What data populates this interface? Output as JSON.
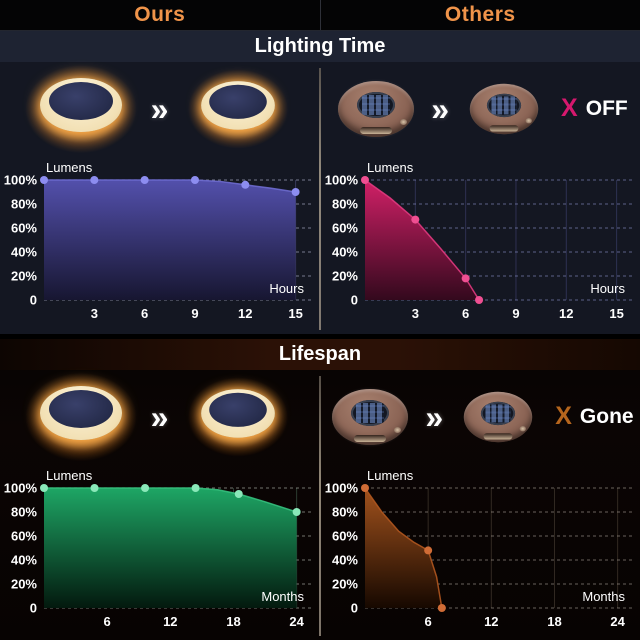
{
  "header": {
    "left": "Ours",
    "right": "Others"
  },
  "arrow_icon": "»",
  "colors": {
    "accent_orange": "#f0944a",
    "x_off_pink": "#d6186e",
    "x_gone_orange": "#b5651d",
    "ours_lighting_fill": "#5350ac",
    "others_lighting_fill": "#d12067",
    "ours_lifespan_fill": "#1ea665",
    "others_lifespan_fill": "#a2521d"
  },
  "sections": [
    {
      "title": "Lighting Time",
      "others_status": {
        "x": "X",
        "label": "OFF"
      }
    },
    {
      "title": "Lifespan",
      "others_status": {
        "x": "X",
        "label": "Gone"
      }
    }
  ],
  "chart_data": [
    {
      "type": "area",
      "title": "Ours - Lighting Time",
      "ylabel": "Lumens",
      "xlabel": "Hours",
      "ylim": [
        0,
        100
      ],
      "y_ticks": [
        "100%",
        "80%",
        "60%",
        "40%",
        "20%",
        "0"
      ],
      "x_ticks": [
        3,
        6,
        9,
        12,
        15
      ],
      "x_max": 15.5,
      "points": [
        [
          0,
          100
        ],
        [
          3,
          100
        ],
        [
          6,
          100
        ],
        [
          9,
          100
        ],
        [
          12,
          96
        ],
        [
          15,
          90
        ]
      ],
      "curve": [
        [
          0,
          100
        ],
        [
          3,
          100
        ],
        [
          6,
          100
        ],
        [
          9,
          100
        ],
        [
          10.5,
          98.8
        ],
        [
          12,
          96
        ],
        [
          13.5,
          93.2
        ],
        [
          15,
          90
        ]
      ],
      "fill_top": "#5350ac",
      "fill_bottom": "#171631",
      "line": "#6e6bcf",
      "dot": "#8d8df0",
      "grid_h": "#c7cbe8",
      "grid_v": "#383b5c"
    },
    {
      "type": "area",
      "title": "Others - Lighting Time",
      "ylabel": "Lumens",
      "xlabel": "Hours",
      "ylim": [
        0,
        100
      ],
      "y_ticks": [
        "100%",
        "80%",
        "60%",
        "40%",
        "20%",
        "0"
      ],
      "x_ticks": [
        3,
        6,
        9,
        12,
        15
      ],
      "x_max": 15.5,
      "points": [
        [
          0,
          100
        ],
        [
          3,
          67
        ],
        [
          6,
          18
        ],
        [
          6.8,
          0
        ]
      ],
      "curve": [
        [
          0,
          100
        ],
        [
          1.5,
          85
        ],
        [
          3,
          67
        ],
        [
          4.5,
          43
        ],
        [
          6,
          18
        ],
        [
          6.8,
          0
        ]
      ],
      "fill_top": "#d12067",
      "fill_bottom": "#33091d",
      "line": "#e03a80",
      "dot": "#ef4f92",
      "grid_h": "#9aa0dd",
      "grid_v": "#2e3152"
    },
    {
      "type": "area",
      "title": "Ours - Lifespan",
      "ylabel": "Lumens",
      "xlabel": "Months",
      "ylim": [
        0,
        100
      ],
      "y_ticks": [
        "100%",
        "80%",
        "60%",
        "40%",
        "20%",
        "0"
      ],
      "x_ticks": [
        6,
        12,
        18,
        24
      ],
      "x_max": 24.7,
      "points": [
        [
          0,
          100
        ],
        [
          4.8,
          100
        ],
        [
          9.6,
          100
        ],
        [
          14.4,
          100
        ],
        [
          18.5,
          95
        ],
        [
          24,
          80
        ]
      ],
      "curve": [
        [
          0,
          100
        ],
        [
          4.8,
          100
        ],
        [
          9.6,
          100
        ],
        [
          14.4,
          100
        ],
        [
          16.5,
          98.5
        ],
        [
          18.5,
          95
        ],
        [
          21,
          88.5
        ],
        [
          24,
          80
        ]
      ],
      "fill_top": "#1ea665",
      "fill_bottom": "#03190e",
      "line": "#35c07d",
      "dot": "#8ae8b9",
      "grid_h": "#c9cfc6",
      "grid_v": "#2c3b31"
    },
    {
      "type": "area",
      "title": "Others - Lifespan",
      "ylabel": "Lumens",
      "xlabel": "Months",
      "ylim": [
        0,
        100
      ],
      "y_ticks": [
        "100%",
        "80%",
        "60%",
        "40%",
        "20%",
        "0"
      ],
      "x_ticks": [
        6,
        12,
        18,
        24
      ],
      "x_max": 24.7,
      "points": [
        [
          0,
          100
        ],
        [
          6,
          48
        ],
        [
          7.3,
          0
        ]
      ],
      "curve": [
        [
          0,
          100
        ],
        [
          1.6,
          80
        ],
        [
          3.2,
          64
        ],
        [
          4.6,
          55
        ],
        [
          6,
          48
        ],
        [
          6.8,
          26
        ],
        [
          7.3,
          0
        ]
      ],
      "fill_top": "#a2521d",
      "fill_bottom": "#160800",
      "line": "#b0571f",
      "dot": "#d06c36",
      "grid_h": "#b9b0a6",
      "grid_v": "#322a22"
    }
  ]
}
